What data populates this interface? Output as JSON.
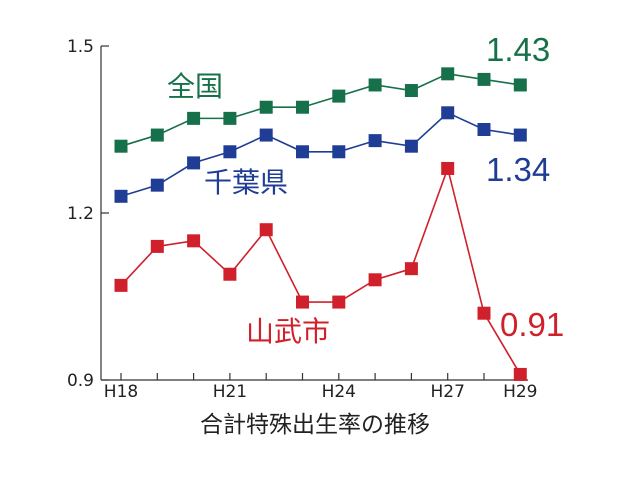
{
  "chart_data": {
    "type": "line",
    "xlabel": "合計特殊出生率の推移",
    "ylabel": "",
    "x": [
      "H18",
      "H19",
      "H20",
      "H21",
      "H22",
      "H23",
      "H24",
      "H25",
      "H26",
      "H27",
      "H28",
      "H29"
    ],
    "x_tick_labels": [
      "H18",
      "H21",
      "H24",
      "H27",
      "H29"
    ],
    "y_tick_labels": [
      "1.5",
      "1.2",
      "0.9"
    ],
    "ylim": [
      0.9,
      1.5
    ],
    "grid": false,
    "legend": "none",
    "series": [
      {
        "name": "全国",
        "color": "#16704a",
        "end_label": "1.43",
        "values": [
          1.32,
          1.34,
          1.37,
          1.37,
          1.39,
          1.39,
          1.41,
          1.43,
          1.42,
          1.45,
          1.44,
          1.43
        ]
      },
      {
        "name": "千葉県",
        "color": "#1f3d94",
        "end_label": "1.34",
        "values": [
          1.23,
          1.25,
          1.29,
          1.31,
          1.34,
          1.31,
          1.31,
          1.33,
          1.32,
          1.38,
          1.35,
          1.34
        ]
      },
      {
        "name": "山武市",
        "color": "#d0202b",
        "end_label": "0.91",
        "values": [
          1.07,
          1.14,
          1.15,
          1.09,
          1.17,
          1.04,
          1.04,
          1.08,
          1.1,
          1.28,
          1.02,
          0.91
        ]
      }
    ]
  }
}
